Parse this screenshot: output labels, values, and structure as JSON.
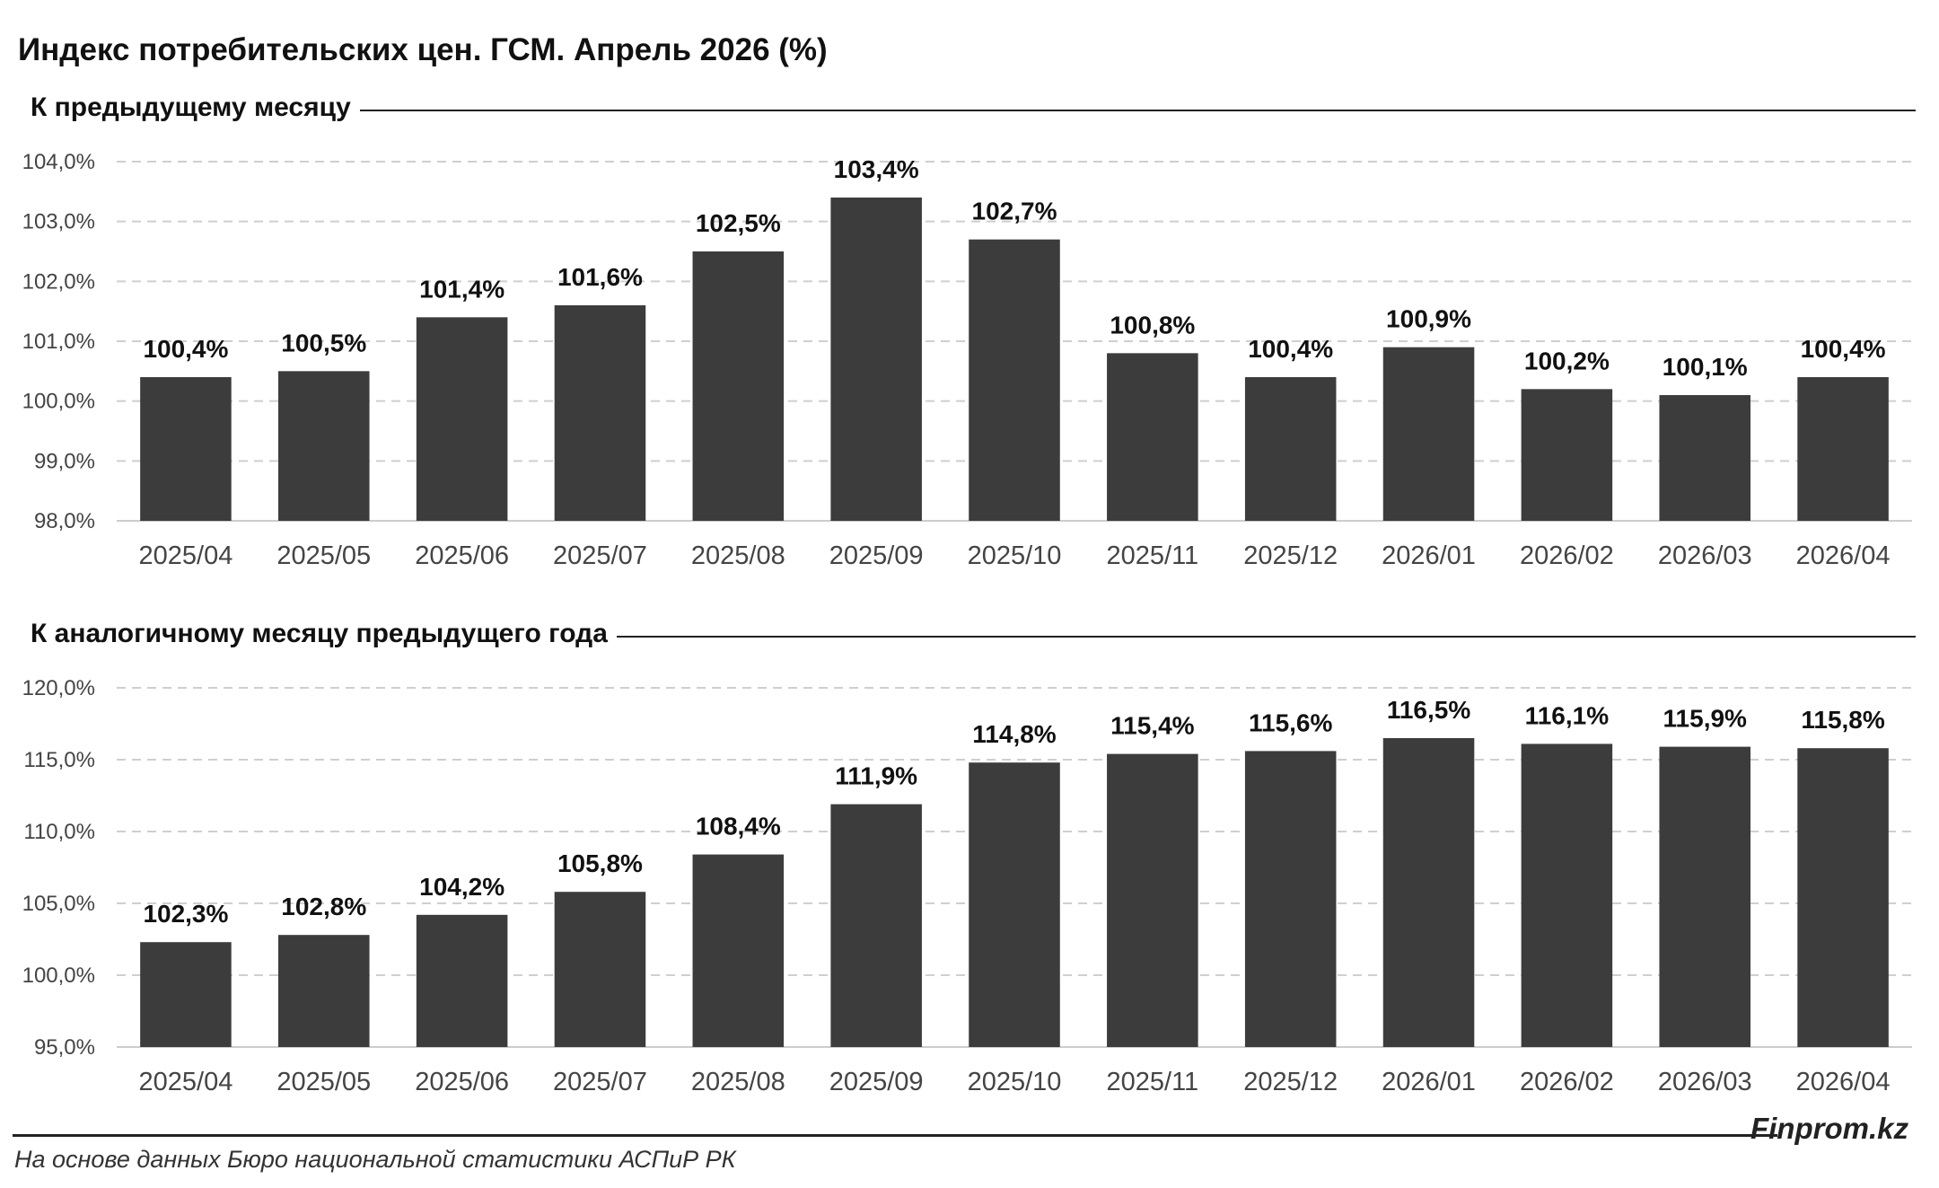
{
  "title": "Индекс потребительских цен. ГСМ. Апрель 2026 (%)",
  "brand": "Finprom.kz",
  "source": "На основе данных Бюро национальной статистики АСПиР РК",
  "colors": {
    "bar": "#3c3c3c",
    "grid": "#cfcfcf",
    "axis": "#cccccc"
  },
  "chart_data": [
    {
      "type": "bar",
      "title": "К предыдущему месяцу",
      "categories": [
        "2025/04",
        "2025/05",
        "2025/06",
        "2025/07",
        "2025/08",
        "2025/09",
        "2025/10",
        "2025/11",
        "2025/12",
        "2026/01",
        "2026/02",
        "2026/03",
        "2026/04"
      ],
      "values": [
        100.4,
        100.5,
        101.4,
        101.6,
        102.5,
        103.4,
        102.7,
        100.8,
        100.4,
        100.9,
        100.2,
        100.1,
        100.4
      ],
      "data_labels": [
        "100,4%",
        "100,5%",
        "101,4%",
        "101,6%",
        "102,5%",
        "103,4%",
        "102,7%",
        "100,8%",
        "100,4%",
        "100,9%",
        "100,2%",
        "100,1%",
        "100,4%"
      ],
      "yticks": [
        98,
        99,
        100,
        101,
        102,
        103,
        104
      ],
      "ytick_labels": [
        "98,0%",
        "99,0%",
        "100,0%",
        "101,0%",
        "102,0%",
        "103,0%",
        "104,0%"
      ],
      "ylim": [
        98,
        104
      ],
      "grid": true,
      "xlabel": "",
      "ylabel": ""
    },
    {
      "type": "bar",
      "title": "К аналогичному месяцу предыдущего года",
      "categories": [
        "2025/04",
        "2025/05",
        "2025/06",
        "2025/07",
        "2025/08",
        "2025/09",
        "2025/10",
        "2025/11",
        "2025/12",
        "2026/01",
        "2026/02",
        "2026/03",
        "2026/04"
      ],
      "values": [
        102.3,
        102.8,
        104.2,
        105.8,
        108.4,
        111.9,
        114.8,
        115.4,
        115.6,
        116.5,
        116.1,
        115.9,
        115.8
      ],
      "data_labels": [
        "102,3%",
        "102,8%",
        "104,2%",
        "105,8%",
        "108,4%",
        "111,9%",
        "114,8%",
        "115,4%",
        "115,6%",
        "116,5%",
        "116,1%",
        "115,9%",
        "115,8%"
      ],
      "yticks": [
        95,
        100,
        105,
        110,
        115,
        120
      ],
      "ytick_labels": [
        "95,0%",
        "100,0%",
        "105,0%",
        "110,0%",
        "115,0%",
        "120,0%"
      ],
      "ylim": [
        95,
        120
      ],
      "grid": true,
      "xlabel": "",
      "ylabel": ""
    }
  ]
}
